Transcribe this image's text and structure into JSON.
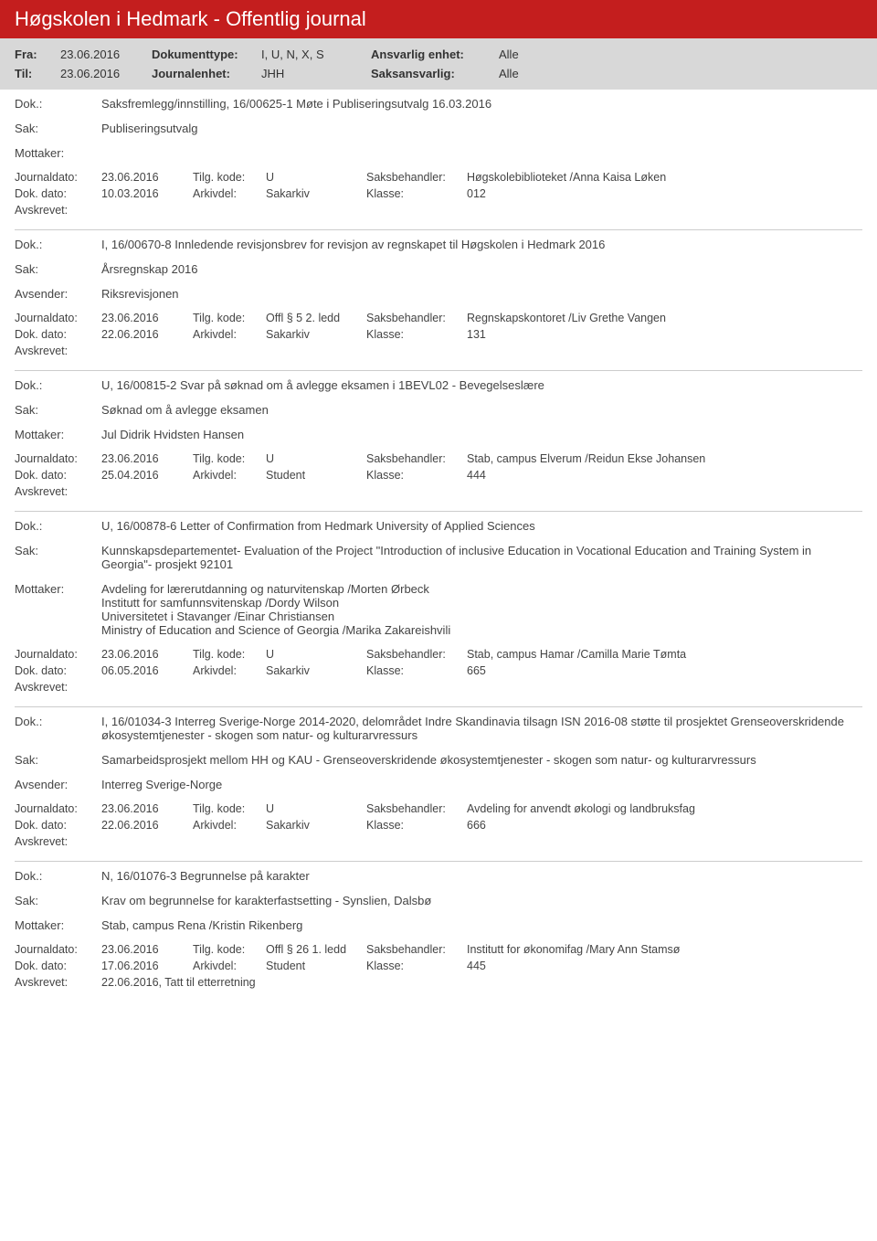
{
  "header": {
    "title": "Høgskolen i Hedmark - Offentlig journal",
    "background_color": "#c41e1e",
    "text_color": "#ffffff"
  },
  "filter": {
    "fra_label": "Fra:",
    "fra_value": "23.06.2016",
    "til_label": "Til:",
    "til_value": "23.06.2016",
    "doktype_label": "Dokumenttype:",
    "doktype_value": "I, U, N, X, S",
    "journalenhet_label": "Journalenhet:",
    "journalenhet_value": "JHH",
    "ansvarlig_label": "Ansvarlig enhet:",
    "ansvarlig_value": "Alle",
    "saksansvarlig_label": "Saksansvarlig:",
    "saksansvarlig_value": "Alle",
    "background_color": "#d8d8d8"
  },
  "labels": {
    "dok": "Dok.:",
    "sak": "Sak:",
    "mottaker": "Mottaker:",
    "avsender": "Avsender:",
    "journaldato": "Journaldato:",
    "dokdato": "Dok. dato:",
    "tilgkode": "Tilg. kode:",
    "arkivdel": "Arkivdel:",
    "saksbehandler": "Saksbehandler:",
    "klasse": "Klasse:",
    "avskrevet": "Avskrevet:"
  },
  "entries": [
    {
      "dok": "Saksfremlegg/innstilling, 16/00625-1 Møte i Publiseringsutvalg 16.03.2016",
      "sak": "Publiseringsutvalg",
      "party_label": "Mottaker:",
      "party_value": "",
      "journaldato": "23.06.2016",
      "tilgkode": "U",
      "saksbehandler": "Høgskolebiblioteket /Anna Kaisa Løken",
      "dokdato": "10.03.2016",
      "arkivdel": "Sakarkiv",
      "klasse": "012",
      "avskrevet": ""
    },
    {
      "dok": "I, 16/00670-8 Innledende revisjonsbrev for revisjon av regnskapet til Høgskolen i Hedmark 2016",
      "sak": "Årsregnskap 2016",
      "party_label": "Avsender:",
      "party_value": "Riksrevisjonen",
      "journaldato": "23.06.2016",
      "tilgkode": "Offl § 5 2. ledd",
      "saksbehandler": "Regnskapskontoret /Liv Grethe Vangen",
      "dokdato": "22.06.2016",
      "arkivdel": "Sakarkiv",
      "klasse": "131",
      "avskrevet": ""
    },
    {
      "dok": "U, 16/00815-2 Svar på søknad om å avlegge eksamen i 1BEVL02 - Bevegelseslære",
      "sak": "Søknad om å avlegge eksamen",
      "party_label": "Mottaker:",
      "party_value": "Jul Didrik Hvidsten Hansen",
      "journaldato": "23.06.2016",
      "tilgkode": "U",
      "saksbehandler": "Stab, campus Elverum /Reidun Ekse Johansen",
      "dokdato": "25.04.2016",
      "arkivdel": "Student",
      "klasse": "444",
      "avskrevet": ""
    },
    {
      "dok": "U, 16/00878-6 Letter of Confirmation from Hedmark University of Applied Sciences",
      "sak": "Kunnskapsdepartementet- Evaluation of the Project \"Introduction of inclusive Education in Vocational Education and Training System in Georgia\"- prosjekt 92101",
      "party_label": "Mottaker:",
      "party_value": "Avdeling for lærerutdanning og naturvitenskap /Morten Ørbeck\nInstitutt for samfunnsvitenskap /Dordy Wilson\nUniversitetet i Stavanger /Einar Christiansen\nMinistry of Education and Science of Georgia /Marika Zakareishvili",
      "journaldato": "23.06.2016",
      "tilgkode": "U",
      "saksbehandler": "Stab, campus Hamar /Camilla Marie Tømta",
      "dokdato": "06.05.2016",
      "arkivdel": "Sakarkiv",
      "klasse": "665",
      "avskrevet": ""
    },
    {
      "dok": "I, 16/01034-3 Interreg Sverige-Norge 2014-2020, delområdet Indre Skandinavia tilsagn ISN 2016-08 støtte til prosjektet Grenseoverskridende økosystemtjenester - skogen som natur- og kulturarvressurs",
      "sak": "Samarbeidsprosjekt mellom HH og KAU - Grenseoverskridende økosystemtjenester - skogen som natur- og kulturarvressurs",
      "party_label": "Avsender:",
      "party_value": "Interreg Sverige-Norge",
      "journaldato": "23.06.2016",
      "tilgkode": "U",
      "saksbehandler": "Avdeling for anvendt økologi og landbruksfag",
      "dokdato": "22.06.2016",
      "arkivdel": "Sakarkiv",
      "klasse": "666",
      "avskrevet": ""
    },
    {
      "dok": "N, 16/01076-3 Begrunnelse på karakter",
      "sak": "Krav om begrunnelse for karakterfastsetting - Synslien, Dalsbø",
      "party_label": "Mottaker:",
      "party_value": "Stab, campus Rena /Kristin Rikenberg",
      "journaldato": "23.06.2016",
      "tilgkode": "Offl § 26 1. ledd",
      "saksbehandler": "Institutt for økonomifag /Mary Ann Stamsø",
      "dokdato": "17.06.2016",
      "arkivdel": "Student",
      "klasse": "445",
      "avskrevet": "22.06.2016, Tatt til etterretning"
    }
  ]
}
